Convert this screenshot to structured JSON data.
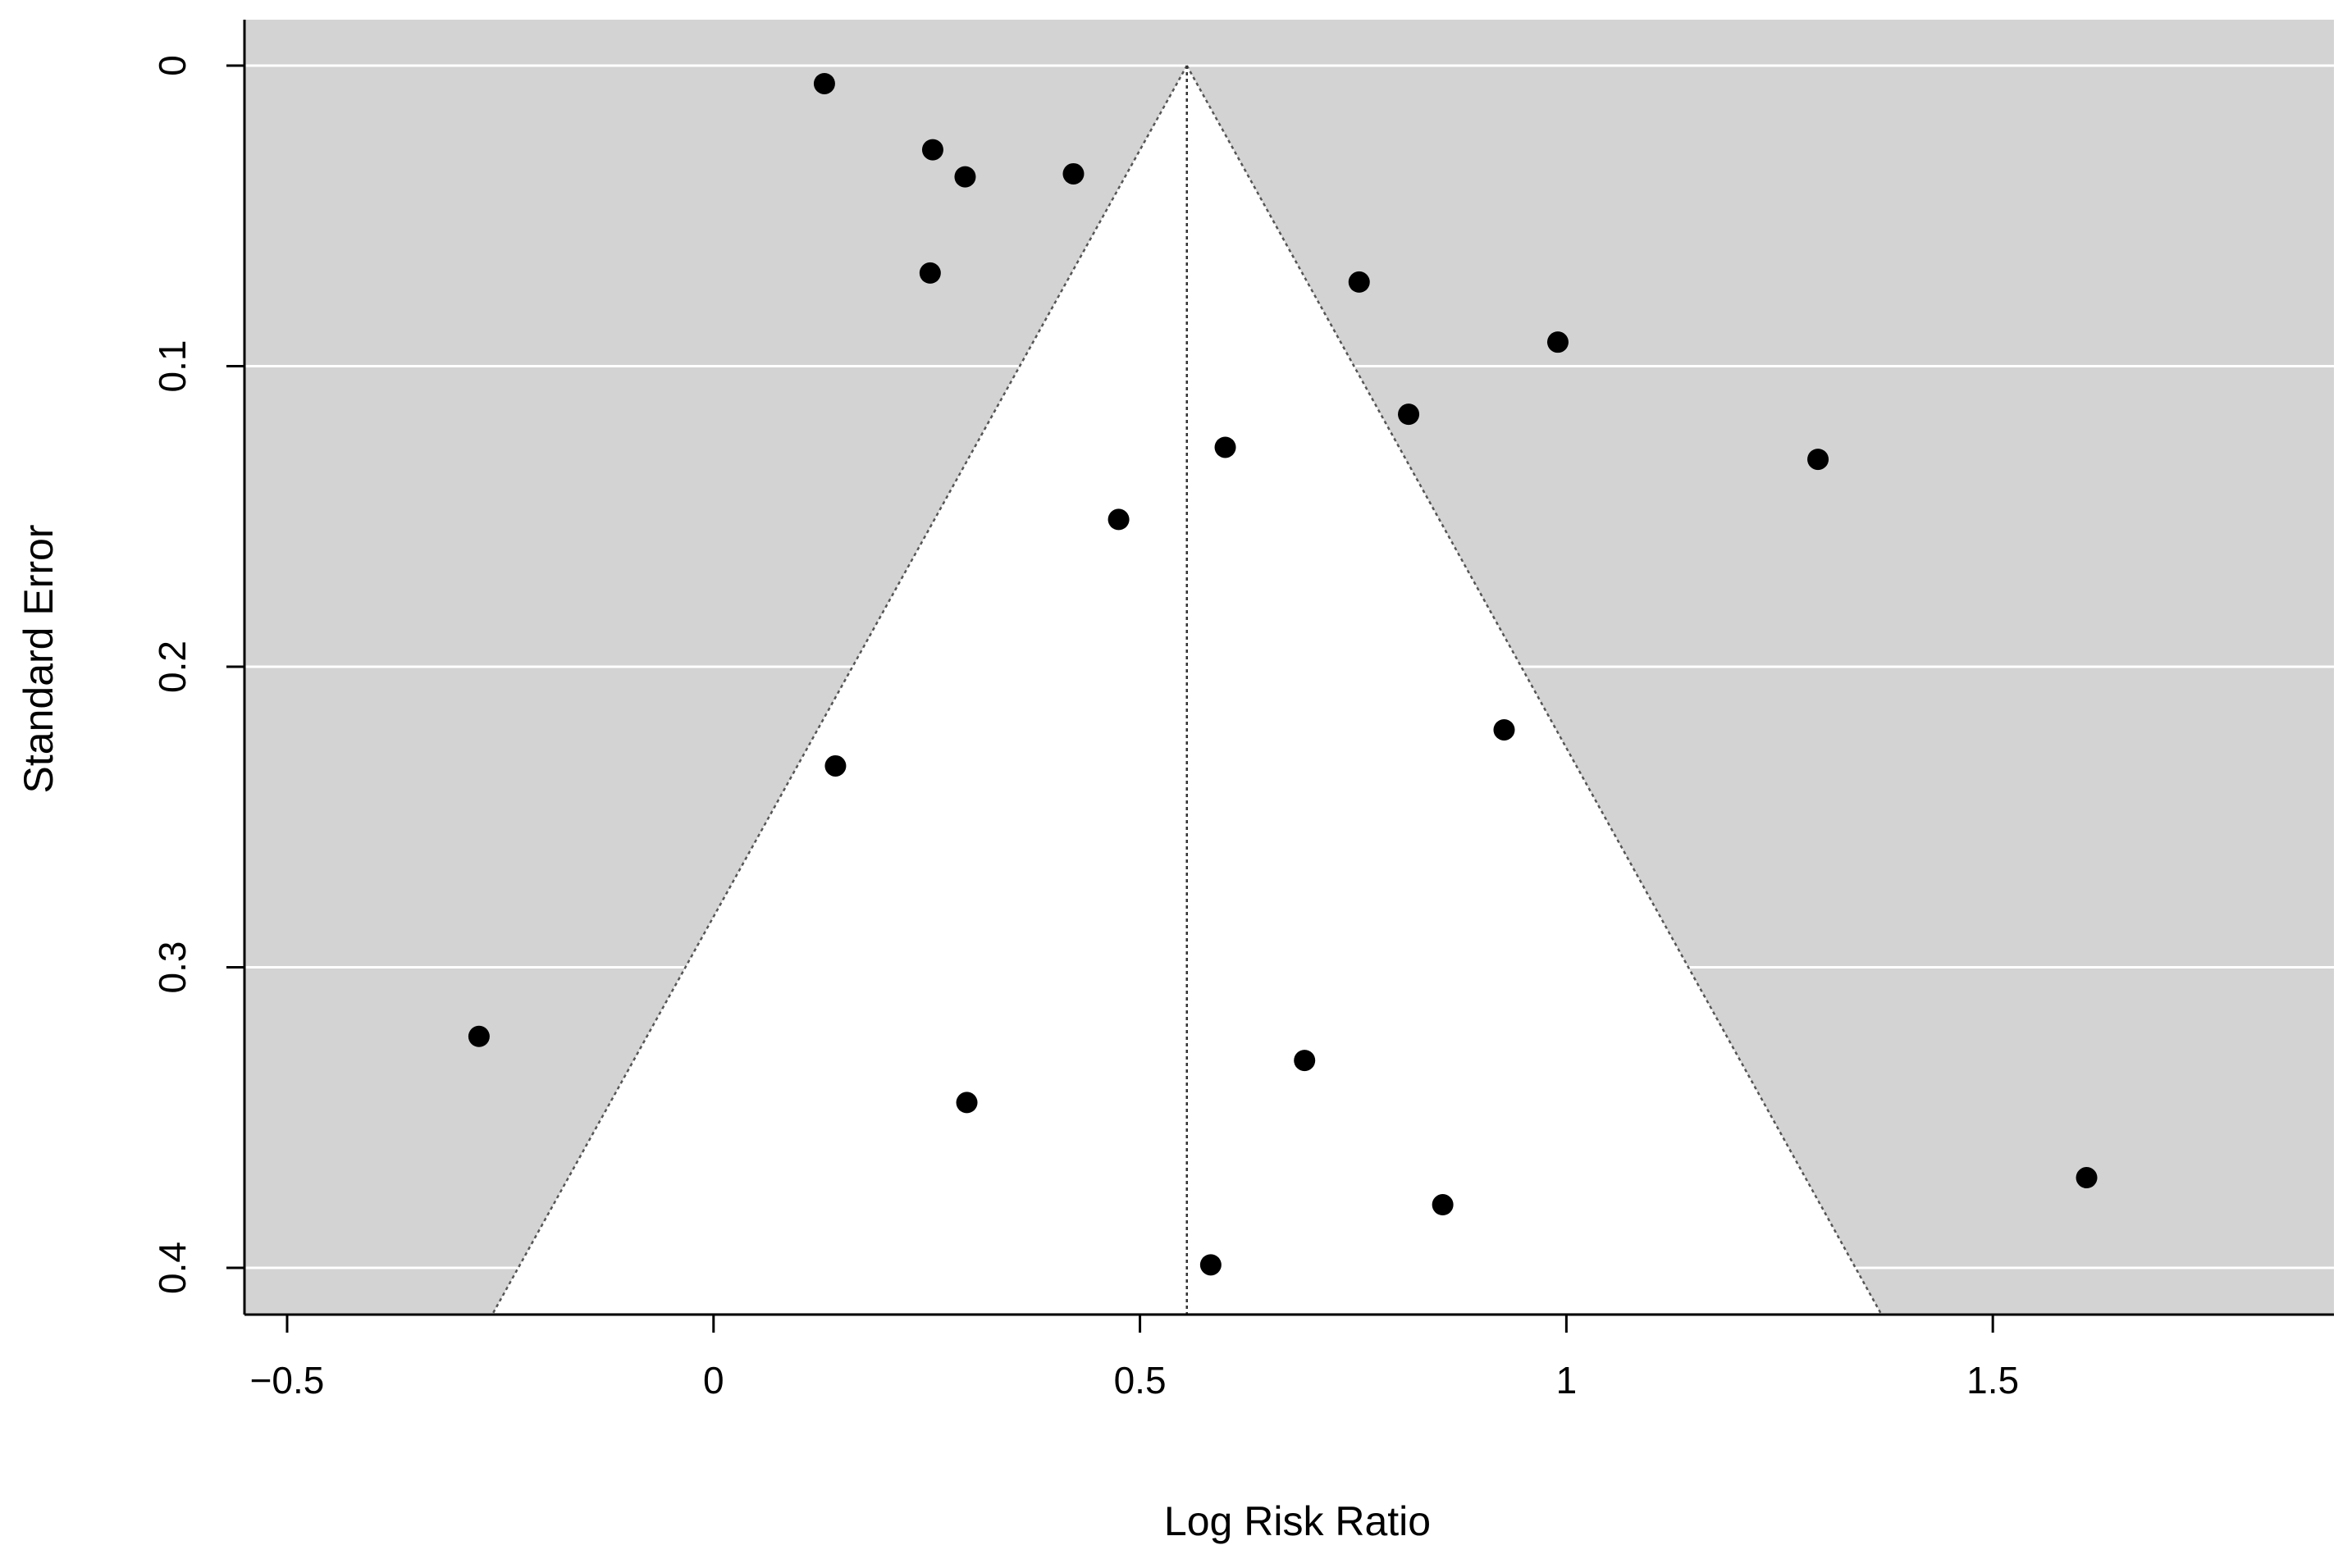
{
  "chart_data": {
    "type": "scatter",
    "subtype": "funnel-plot",
    "title": "",
    "xlabel": "Log Risk Ratio",
    "ylabel": "Standard Error",
    "xlim": [
      -0.55,
      1.9
    ],
    "ylim": [
      0,
      0.415
    ],
    "y_inverted": true,
    "x_ticks": [
      -0.5,
      0,
      0.5,
      1,
      1.5
    ],
    "x_tick_labels": [
      "−0.5",
      "0",
      "0.5",
      "1",
      "1.5"
    ],
    "y_ticks": [
      0,
      0.1,
      0.2,
      0.3,
      0.4
    ],
    "y_tick_labels": [
      "0",
      "0.1",
      "0.2",
      "0.3",
      "0.4"
    ],
    "grid": "horizontal-white",
    "background_color": "#d3d3d3",
    "funnel_fill_color": "#ffffff",
    "point_color": "#000000",
    "pooled_estimate": 0.555,
    "funnel_z": 1.96,
    "points": [
      {
        "x": 0.13,
        "y": 0.006
      },
      {
        "x": 0.257,
        "y": 0.028
      },
      {
        "x": 0.295,
        "y": 0.037
      },
      {
        "x": 0.422,
        "y": 0.036
      },
      {
        "x": 0.254,
        "y": 0.069
      },
      {
        "x": 0.757,
        "y": 0.072
      },
      {
        "x": 0.99,
        "y": 0.092
      },
      {
        "x": 0.815,
        "y": 0.116
      },
      {
        "x": 0.6,
        "y": 0.127
      },
      {
        "x": 1.295,
        "y": 0.131
      },
      {
        "x": 0.475,
        "y": 0.151
      },
      {
        "x": 0.927,
        "y": 0.221
      },
      {
        "x": 0.143,
        "y": 0.233
      },
      {
        "x": -0.275,
        "y": 0.323
      },
      {
        "x": 0.693,
        "y": 0.331
      },
      {
        "x": 0.297,
        "y": 0.345
      },
      {
        "x": 1.61,
        "y": 0.37
      },
      {
        "x": 0.855,
        "y": 0.379
      },
      {
        "x": 0.583,
        "y": 0.399
      }
    ]
  }
}
